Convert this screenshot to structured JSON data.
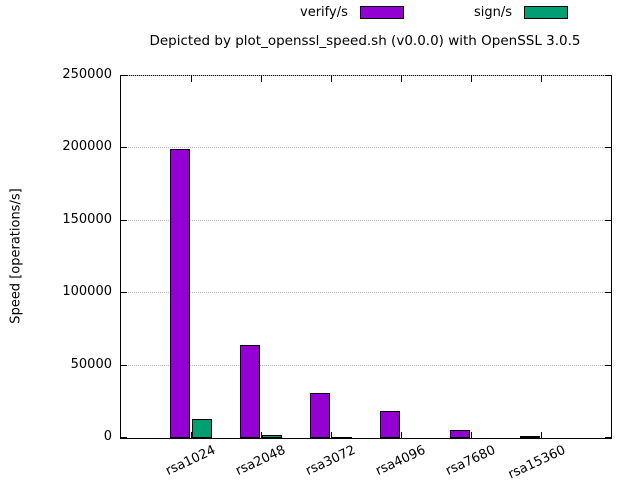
{
  "chart_data": {
    "type": "bar",
    "title": "Depicted by plot_openssl_speed.sh (v0.0.0) with OpenSSL 3.0.5",
    "ylabel": "Speed [operations/s]",
    "xlabel": "",
    "categories": [
      "rsa1024",
      "rsa2048",
      "rsa3072",
      "rsa4096",
      "rsa7680",
      "rsa15360"
    ],
    "series": [
      {
        "name": "verify/s",
        "color": "#9400d3",
        "values": [
          199500,
          64000,
          31000,
          18500,
          5500,
          1500
        ]
      },
      {
        "name": "sign/s",
        "color": "#009e73",
        "values": [
          13000,
          1800,
          600,
          250,
          70,
          10
        ]
      }
    ],
    "ylim": [
      0,
      250000
    ],
    "yticks": [
      0,
      50000,
      100000,
      150000,
      200000,
      250000
    ],
    "grid": true,
    "legend_position": "top-center",
    "axis_color": "#000000",
    "grid_color": "#b5b5b5"
  }
}
